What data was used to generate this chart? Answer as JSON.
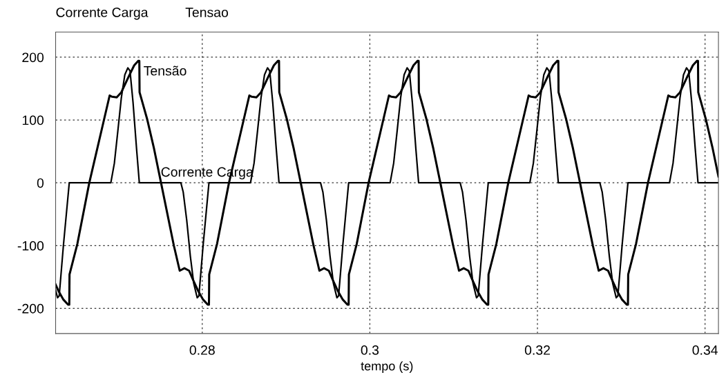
{
  "chart_data": {
    "type": "line",
    "xlabel": "tempo (s)",
    "xlim": [
      0.2625,
      0.3416
    ],
    "xticks": [
      0.28,
      0.3,
      0.32,
      0.34
    ],
    "ylim": [
      -240,
      240
    ],
    "yticks": [
      -200,
      -100,
      0,
      100,
      200
    ],
    "grid": true,
    "legend": "top",
    "line_style": "solid",
    "marker": "none",
    "annotations": [
      "Corrente Carga",
      "Tensao"
    ],
    "series": [
      {
        "name": "Corrente Carga",
        "color": "#000000",
        "x": [
          0.2625,
          0.26273,
          0.26293,
          0.26343,
          0.26413,
          0.26909,
          0.26951,
          0.26993,
          0.27034,
          0.27076,
          0.27112,
          0.27138,
          0.27174,
          0.27216,
          0.27249,
          0.27745,
          0.27773,
          0.27815,
          0.27857,
          0.27898,
          0.2794,
          0.2796,
          0.2801,
          0.2808,
          0.28576,
          0.28618,
          0.2866,
          0.28701,
          0.28743,
          0.28779,
          0.28805,
          0.28841,
          0.28883,
          0.28916,
          0.29412,
          0.2944,
          0.29482,
          0.29524,
          0.29565,
          0.29607,
          0.29627,
          0.29677,
          0.29747,
          0.30242,
          0.30284,
          0.30326,
          0.30367,
          0.30409,
          0.30445,
          0.30471,
          0.30507,
          0.30549,
          0.30582,
          0.31078,
          0.31106,
          0.31148,
          0.3119,
          0.31231,
          0.31273,
          0.31293,
          0.31343,
          0.31413,
          0.31909,
          0.31951,
          0.31993,
          0.32034,
          0.32076,
          0.32112,
          0.32138,
          0.32174,
          0.32216,
          0.32249,
          0.32745,
          0.32773,
          0.32815,
          0.32857,
          0.32898,
          0.3294,
          0.3296,
          0.3301,
          0.3308,
          0.33576,
          0.33618,
          0.3366,
          0.33701,
          0.33743,
          0.33779,
          0.33805,
          0.33841,
          0.33883,
          0.33916,
          0.3416
        ],
        "values": [
          -171,
          -183,
          -180,
          -100,
          0,
          0,
          31,
          83,
          135,
          172,
          183,
          178,
          128,
          54,
          0,
          0,
          -15,
          -60,
          -116,
          -160,
          -183,
          -180,
          -100,
          0,
          0,
          31,
          83,
          135,
          172,
          183,
          178,
          128,
          54,
          0,
          0,
          -15,
          -60,
          -116,
          -160,
          -183,
          -180,
          -100,
          0,
          0,
          31,
          83,
          135,
          172,
          183,
          178,
          128,
          54,
          0,
          0,
          -15,
          -60,
          -116,
          -160,
          -183,
          -180,
          -100,
          0,
          0,
          31,
          83,
          135,
          172,
          183,
          178,
          128,
          54,
          0,
          0,
          -15,
          -60,
          -116,
          -160,
          -183,
          -180,
          -100,
          0,
          0,
          31,
          83,
          135,
          172,
          183,
          178,
          128,
          54,
          0,
          0
        ]
      },
      {
        "name": "Tensão",
        "color": "#000000",
        "x": [
          0.2625,
          0.26287,
          0.26343,
          0.26399,
          0.26413,
          0.26416,
          0.2651,
          0.26652,
          0.26895,
          0.26923,
          0.26979,
          0.27034,
          0.27118,
          0.27188,
          0.27235,
          0.27249,
          0.27252,
          0.27341,
          0.27425,
          0.27508,
          0.27661,
          0.27731,
          0.27787,
          0.27843,
          0.27898,
          0.27954,
          0.2801,
          0.28066,
          0.2808,
          0.28083,
          0.28177,
          0.28319,
          0.28562,
          0.2859,
          0.28646,
          0.28701,
          0.28785,
          0.28855,
          0.28902,
          0.28916,
          0.28919,
          0.29008,
          0.29092,
          0.29175,
          0.29328,
          0.29398,
          0.29454,
          0.2951,
          0.29565,
          0.29621,
          0.29677,
          0.29733,
          0.29747,
          0.2975,
          0.29844,
          0.29985,
          0.30228,
          0.30256,
          0.30312,
          0.30367,
          0.30451,
          0.30521,
          0.30568,
          0.30582,
          0.30585,
          0.30674,
          0.30758,
          0.30841,
          0.30994,
          0.31064,
          0.3112,
          0.31176,
          0.31231,
          0.31287,
          0.31343,
          0.31399,
          0.31413,
          0.31416,
          0.3151,
          0.31652,
          0.31895,
          0.31923,
          0.31979,
          0.32034,
          0.32118,
          0.32188,
          0.32235,
          0.32249,
          0.32252,
          0.32341,
          0.32425,
          0.32508,
          0.32661,
          0.32731,
          0.32787,
          0.32843,
          0.32898,
          0.32954,
          0.3301,
          0.33066,
          0.3308,
          0.33083,
          0.33177,
          0.33319,
          0.33562,
          0.3359,
          0.33646,
          0.33701,
          0.33785,
          0.33855,
          0.33902,
          0.33916,
          0.33919,
          0.34008,
          0.34092,
          0.3416
        ],
        "values": [
          -162,
          -173,
          -186,
          -194,
          -194,
          -146,
          -97,
          0,
          139,
          137,
          136,
          144,
          168,
          187,
          194,
          194,
          144,
          102,
          54,
          0,
          -100,
          -140,
          -136,
          -140,
          -157,
          -173,
          -186,
          -194,
          -194,
          -146,
          -97,
          0,
          139,
          137,
          136,
          144,
          168,
          187,
          194,
          194,
          144,
          102,
          54,
          0,
          -100,
          -140,
          -136,
          -140,
          -157,
          -173,
          -186,
          -194,
          -194,
          -146,
          -97,
          0,
          139,
          137,
          136,
          144,
          168,
          187,
          194,
          194,
          144,
          102,
          54,
          0,
          -100,
          -140,
          -136,
          -140,
          -157,
          -173,
          -186,
          -194,
          -194,
          -146,
          -97,
          0,
          139,
          137,
          136,
          144,
          168,
          187,
          194,
          194,
          144,
          102,
          54,
          0,
          -100,
          -140,
          -136,
          -140,
          -157,
          -173,
          -186,
          -194,
          -194,
          -146,
          -97,
          0,
          139,
          137,
          136,
          144,
          168,
          187,
          194,
          194,
          144,
          102,
          54,
          10
        ]
      }
    ]
  }
}
